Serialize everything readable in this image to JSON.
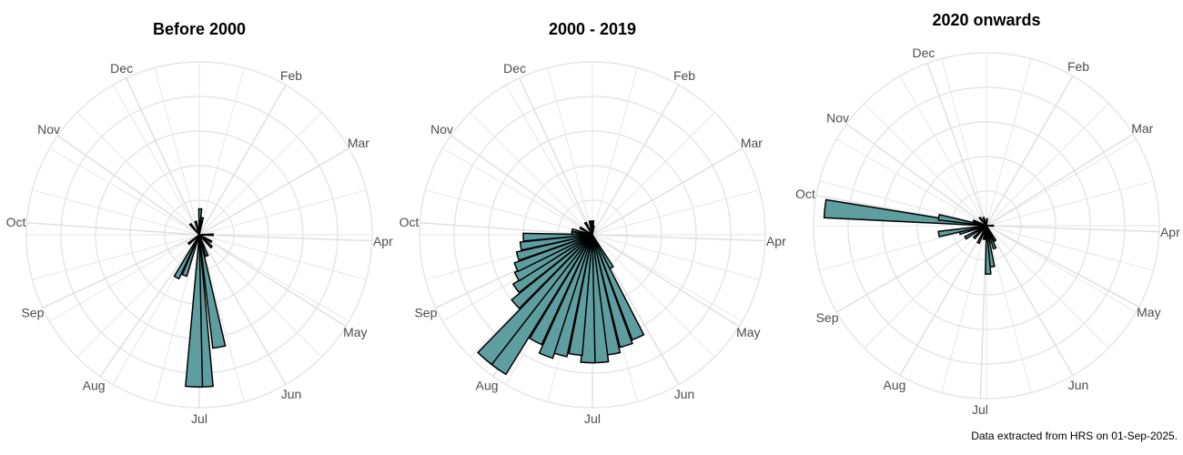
{
  "caption": "Data extracted from HRS on 01-Sep-2025.",
  "style": {
    "fill": "#5f9ea0",
    "stroke": "#000000",
    "grid": "#e6e6e6"
  },
  "chart_data": [
    {
      "type": "rose",
      "title": "Before 2000",
      "angular_labels": [
        "Dec",
        "Feb",
        "Mar",
        "Apr",
        "May",
        "Jun",
        "Jul",
        "Aug",
        "Sep",
        "Oct",
        "Nov"
      ],
      "grid": true,
      "rmax": 100,
      "bars": [
        {
          "angle": 2,
          "value": 15
        },
        {
          "angle": 5,
          "value": 8
        },
        {
          "angle": 10,
          "value": 10
        },
        {
          "angle": 90,
          "value": 8
        },
        {
          "angle": 120,
          "value": 8
        },
        {
          "angle": 135,
          "value": 10
        },
        {
          "angle": 160,
          "value": 13
        },
        {
          "angle": 170,
          "value": 66
        },
        {
          "angle": 178,
          "value": 88
        },
        {
          "angle": 182,
          "value": 88
        },
        {
          "angle": 200,
          "value": 25
        },
        {
          "angle": 208,
          "value": 28
        },
        {
          "angle": 230,
          "value": 8
        },
        {
          "angle": 320,
          "value": 8
        },
        {
          "angle": 345,
          "value": 8
        }
      ]
    },
    {
      "type": "rose",
      "title": "2000 - 2019",
      "angular_labels": [
        "Dec",
        "Feb",
        "Mar",
        "Apr",
        "May",
        "Jun",
        "Jul",
        "Aug",
        "Sep",
        "Oct",
        "Nov"
      ],
      "grid": true,
      "rmax": 100,
      "bars": [
        {
          "angle": 2,
          "value": 8
        },
        {
          "angle": 8,
          "value": 5
        },
        {
          "angle": 150,
          "value": 22
        },
        {
          "angle": 156,
          "value": 65
        },
        {
          "angle": 163,
          "value": 67
        },
        {
          "angle": 170,
          "value": 70
        },
        {
          "angle": 176,
          "value": 74
        },
        {
          "angle": 182,
          "value": 74
        },
        {
          "angle": 188,
          "value": 70
        },
        {
          "angle": 195,
          "value": 72
        },
        {
          "angle": 201,
          "value": 75
        },
        {
          "angle": 208,
          "value": 70
        },
        {
          "angle": 215,
          "value": 95
        },
        {
          "angle": 221,
          "value": 95
        },
        {
          "angle": 228,
          "value": 60
        },
        {
          "angle": 235,
          "value": 54
        },
        {
          "angle": 241,
          "value": 50
        },
        {
          "angle": 247,
          "value": 48
        },
        {
          "angle": 254,
          "value": 45
        },
        {
          "angle": 261,
          "value": 42
        },
        {
          "angle": 268,
          "value": 40
        },
        {
          "angle": 275,
          "value": 12
        },
        {
          "angle": 283,
          "value": 12
        },
        {
          "angle": 300,
          "value": 8
        },
        {
          "angle": 330,
          "value": 8
        },
        {
          "angle": 350,
          "value": 8
        }
      ]
    },
    {
      "type": "rose",
      "title": "2020 onwards",
      "angular_labels": [
        "Dec",
        "Feb",
        "Mar",
        "Apr",
        "May",
        "Jun",
        "Jul",
        "Aug",
        "Sep",
        "Oct",
        "Nov"
      ],
      "grid": true,
      "rmax": 100,
      "bars": [
        {
          "angle": 5,
          "value": 4
        },
        {
          "angle": 90,
          "value": 4
        },
        {
          "angle": 150,
          "value": 10
        },
        {
          "angle": 160,
          "value": 14
        },
        {
          "angle": 172,
          "value": 24
        },
        {
          "angle": 178,
          "value": 28
        },
        {
          "angle": 190,
          "value": 8
        },
        {
          "angle": 205,
          "value": 11
        },
        {
          "angle": 225,
          "value": 10
        },
        {
          "angle": 240,
          "value": 14
        },
        {
          "angle": 255,
          "value": 16
        },
        {
          "angle": 260,
          "value": 28
        },
        {
          "angle": 276,
          "value": 94
        },
        {
          "angle": 280,
          "value": 28
        },
        {
          "angle": 290,
          "value": 8
        },
        {
          "angle": 320,
          "value": 6
        },
        {
          "angle": 340,
          "value": 5
        }
      ]
    }
  ]
}
